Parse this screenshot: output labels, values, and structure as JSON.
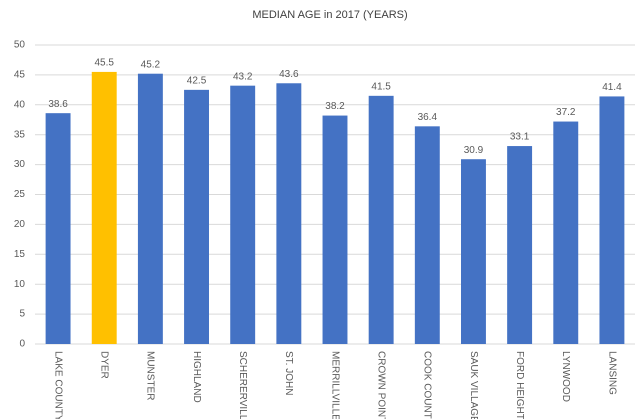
{
  "chart_data": {
    "type": "bar",
    "title": "MEDIAN AGE in 2017 (YEARS)",
    "categories": [
      "LAKE COUNTY",
      "DYER",
      "MUNSTER",
      "HIGHLAND",
      "SCHERERVILLE",
      "ST. JOHN",
      "MERRILLVILLE",
      "CROWN POINT",
      "COOK COUNTY",
      "SAUK VILLAGE",
      "FORD HEIGHTS",
      "LYNWOOD",
      "LANSING"
    ],
    "values": [
      38.6,
      45.5,
      45.2,
      42.5,
      43.2,
      43.6,
      38.2,
      41.5,
      36.4,
      30.9,
      33.1,
      37.2,
      41.4
    ],
    "colors": [
      "#4472c4",
      "#ffc000",
      "#4472c4",
      "#4472c4",
      "#4472c4",
      "#4472c4",
      "#4472c4",
      "#4472c4",
      "#4472c4",
      "#4472c4",
      "#4472c4",
      "#4472c4",
      "#4472c4"
    ],
    "ylim": [
      0,
      50
    ],
    "yticks": [
      0,
      5,
      10,
      15,
      20,
      25,
      30,
      35,
      40,
      45,
      50
    ],
    "grid": true
  }
}
